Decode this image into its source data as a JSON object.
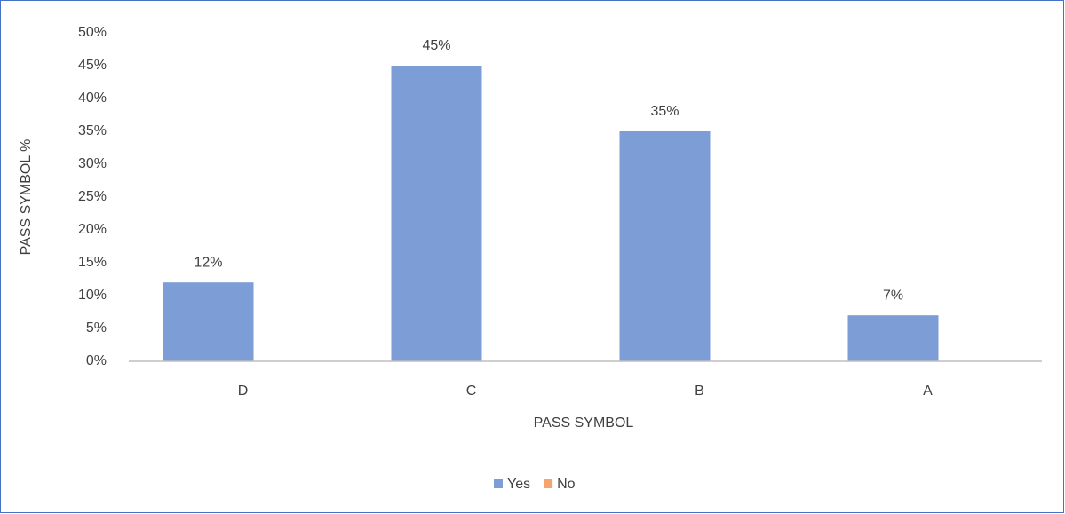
{
  "chart_data": {
    "type": "bar",
    "categories": [
      "D",
      "C",
      "B",
      "A"
    ],
    "series": [
      {
        "name": "Yes",
        "color": "#7c9dd6",
        "values": [
          12,
          45,
          35,
          7
        ],
        "value_labels": [
          "12%",
          "45%",
          "35%",
          "7%"
        ]
      },
      {
        "name": "No",
        "color": "#f4a46c",
        "values": [
          null,
          null,
          null,
          null
        ]
      }
    ],
    "xlabel": "PASS SYMBOL",
    "ylabel": "PASS SYMBOL %",
    "ylim": [
      0,
      50
    ],
    "yticks": [
      {
        "value": 0,
        "label": "0%"
      },
      {
        "value": 5,
        "label": "5%"
      },
      {
        "value": 10,
        "label": "10%"
      },
      {
        "value": 15,
        "label": "15%"
      },
      {
        "value": 20,
        "label": "20%"
      },
      {
        "value": 25,
        "label": "25%"
      },
      {
        "value": 30,
        "label": "30%"
      },
      {
        "value": 35,
        "label": "35%"
      },
      {
        "value": 40,
        "label": "40%"
      },
      {
        "value": 45,
        "label": "45%"
      },
      {
        "value": 50,
        "label": "50%"
      }
    ],
    "grid": false,
    "legend": "bottom"
  }
}
